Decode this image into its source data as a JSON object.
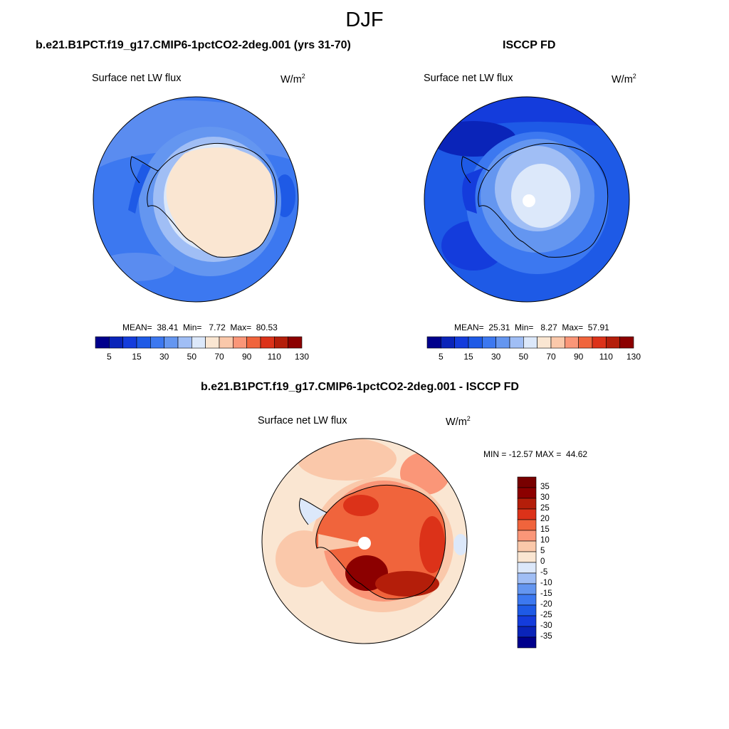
{
  "season_title": "DJF",
  "panels": [
    {
      "title": "b.e21.B1PCT.f19_g17.CMIP6-1pctCO2-2deg.001 (yrs 31-70)",
      "variable": "Surface net LW flux",
      "units_base": "W/m",
      "units_exp": "2",
      "stats": {
        "mean": "38.41",
        "min": "7.72",
        "max": "80.53"
      },
      "stats_text": "MEAN=  38.41  Min=   7.72  Max=  80.53"
    },
    {
      "title": "ISCCP FD",
      "variable": "Surface net LW flux",
      "units_base": "W/m",
      "units_exp": "2",
      "stats": {
        "mean": "25.31",
        "min": "8.27",
        "max": "57.91"
      },
      "stats_text": "MEAN=  25.31  Min=   8.27  Max=  57.91"
    },
    {
      "title": "b.e21.B1PCT.f19_g17.CMIP6-1pctCO2-2deg.001 - ISCCP FD",
      "variable": "Surface net LW flux",
      "units_base": "W/m",
      "units_exp": "2",
      "stats": {
        "min": "-12.57",
        "max": "44.62"
      },
      "stats_text": "MIN = -12.57 MAX =  44.62"
    }
  ],
  "chart_data": [
    {
      "type": "heatmap",
      "projection": "south-polar-stereographic",
      "region": "Antarctica / Southern Ocean",
      "field": "Surface net LW flux",
      "units": "W/m2",
      "approximate_values_by_zone": {
        "open_ocean": 30,
        "sea_ice_zone": 45,
        "antarctic_coast": 55,
        "antarctic_interior": 67
      },
      "colorbar": {
        "orientation": "horizontal",
        "levels": [
          5,
          10,
          15,
          20,
          30,
          40,
          50,
          60,
          70,
          80,
          90,
          100,
          110,
          120,
          130
        ],
        "tick_labels": [
          "5",
          "15",
          "30",
          "50",
          "70",
          "90",
          "110",
          "130"
        ],
        "colors": [
          "#00008c",
          "#0a24b9",
          "#143cdc",
          "#1e5ae6",
          "#3c78f0",
          "#6496f0",
          "#a0bef5",
          "#dce8fa",
          "#fae6d2",
          "#fac8aa",
          "#fa9678",
          "#f0643c",
          "#dc3219",
          "#b41e0a",
          "#8c0000"
        ]
      }
    },
    {
      "type": "heatmap",
      "projection": "south-polar-stereographic",
      "region": "Antarctica / Southern Ocean",
      "field": "Surface net LW flux",
      "units": "W/m2",
      "approximate_values_by_zone": {
        "open_ocean": 18,
        "sea_ice_zone": 25,
        "antarctic_coast": 35,
        "antarctic_interior": 52
      },
      "colorbar": {
        "orientation": "horizontal",
        "levels": [
          5,
          10,
          15,
          20,
          30,
          40,
          50,
          60,
          70,
          80,
          90,
          100,
          110,
          120,
          130
        ],
        "tick_labels": [
          "5",
          "15",
          "30",
          "50",
          "70",
          "90",
          "110",
          "130"
        ],
        "colors": [
          "#00008c",
          "#0a24b9",
          "#143cdc",
          "#1e5ae6",
          "#3c78f0",
          "#6496f0",
          "#a0bef5",
          "#dce8fa",
          "#fae6d2",
          "#fac8aa",
          "#fa9678",
          "#f0643c",
          "#dc3219",
          "#b41e0a",
          "#8c0000"
        ]
      }
    },
    {
      "type": "heatmap",
      "projection": "south-polar-stereographic",
      "region": "Antarctica / Southern Ocean",
      "field": "Surface net LW flux difference (model - ISCCP FD)",
      "units": "W/m2",
      "approximate_values_by_zone": {
        "open_ocean": 7,
        "sea_ice_zone": 14,
        "antarctic_coast": 32,
        "antarctic_interior": 20
      },
      "colorbar": {
        "orientation": "vertical",
        "levels": [
          -35,
          -30,
          -25,
          -20,
          -15,
          -10,
          -5,
          0,
          5,
          10,
          15,
          20,
          25,
          30,
          35
        ],
        "tick_labels": [
          "35",
          "30",
          "25",
          "20",
          "15",
          "10",
          "5",
          "0",
          "-5",
          "-10",
          "-15",
          "-20",
          "-25",
          "-30",
          "-35"
        ],
        "colors": [
          "#00008c",
          "#0a24b9",
          "#143cdc",
          "#1e5ae6",
          "#3c78f0",
          "#6496f0",
          "#a0bef5",
          "#dce8fa",
          "#fae6d2",
          "#fac8aa",
          "#fa9678",
          "#f0643c",
          "#dc3219",
          "#b41e0a",
          "#8c0000",
          "#780000"
        ]
      }
    }
  ]
}
